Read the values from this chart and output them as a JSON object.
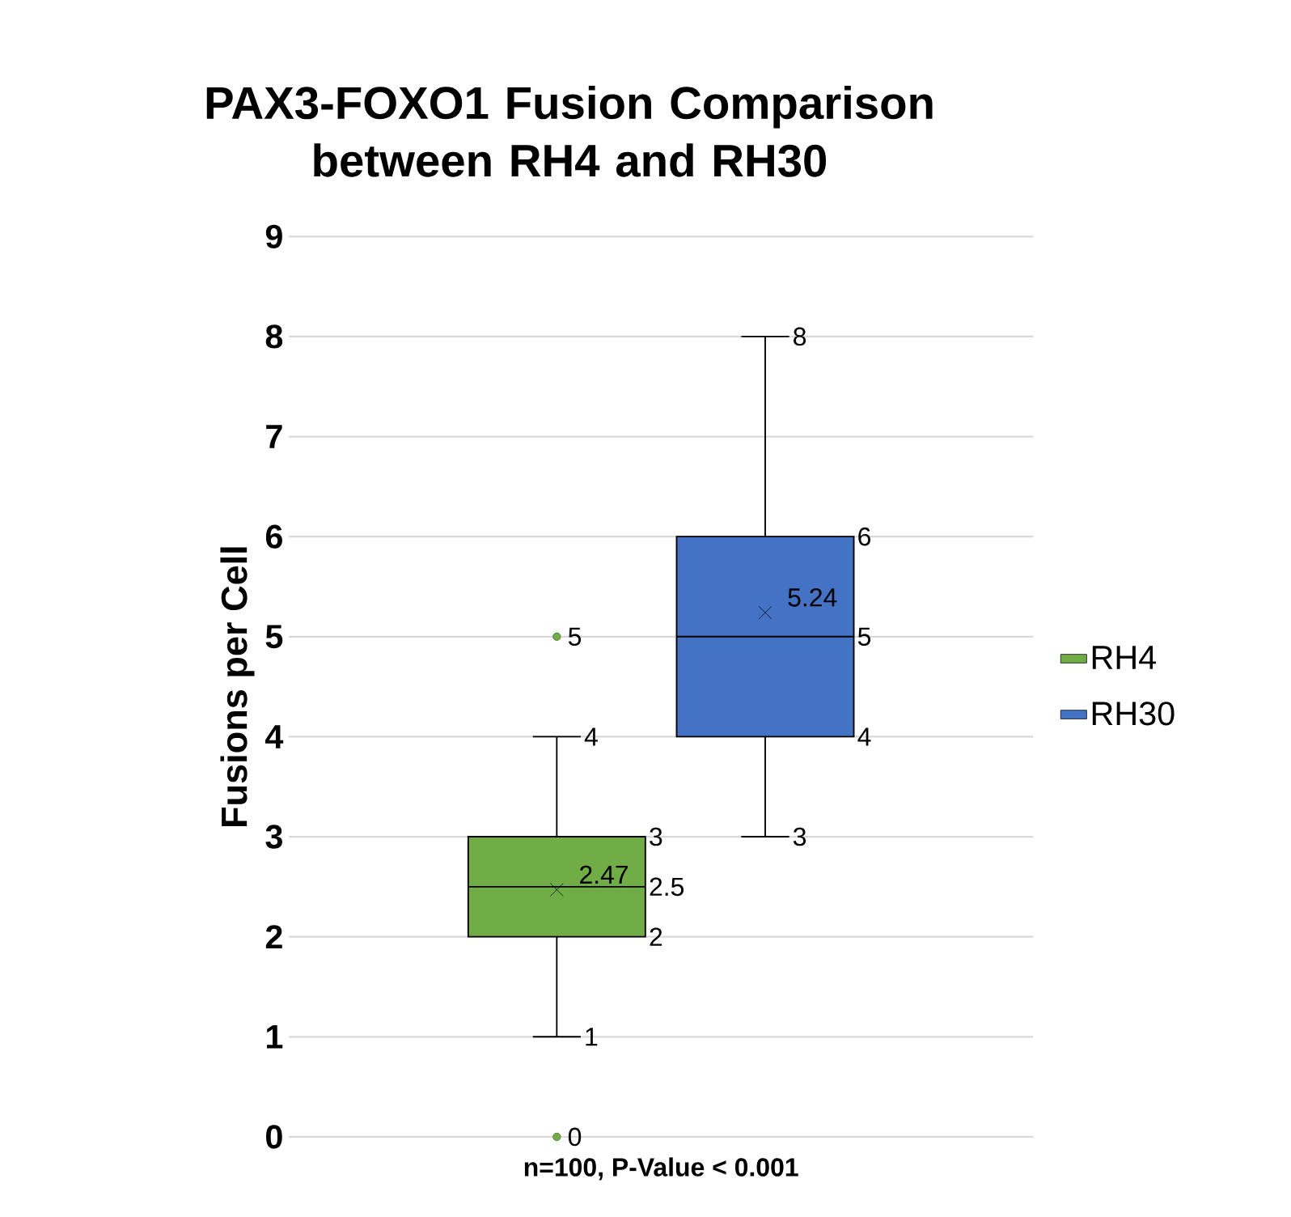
{
  "chart_data": {
    "type": "box",
    "title": "PAX3-FOXO1 Fusion Comparison between RH4 and RH30",
    "xlabel": "n=100, P-Value < 0.001",
    "ylabel": "Fusions per Cell",
    "categories": [
      null
    ],
    "series": [
      {
        "name": "RH4",
        "color": "#70ad47",
        "boxes": [
          {
            "low": 1,
            "q1": 2,
            "median": 2.5,
            "q3": 3,
            "high": 4,
            "mean": 2.47,
            "outliers": [
              0,
              5
            ]
          }
        ]
      },
      {
        "name": "RH30",
        "color": "#4472c4",
        "boxes": [
          {
            "low": 3,
            "q1": 4,
            "median": 5,
            "q3": 6,
            "high": 8,
            "mean": 5.24
          }
        ]
      }
    ],
    "ylim": [
      0,
      9
    ],
    "yticks": [
      0,
      1,
      2,
      3,
      4,
      5,
      6,
      7,
      8,
      9
    ],
    "grid": "y",
    "legend": "right",
    "data_labels": true,
    "annotations": [
      "2",
      "2.5",
      "3",
      "1",
      "4",
      "0",
      "5",
      "2.47",
      "4",
      "5",
      "6",
      "3",
      "8",
      "5.24"
    ]
  }
}
